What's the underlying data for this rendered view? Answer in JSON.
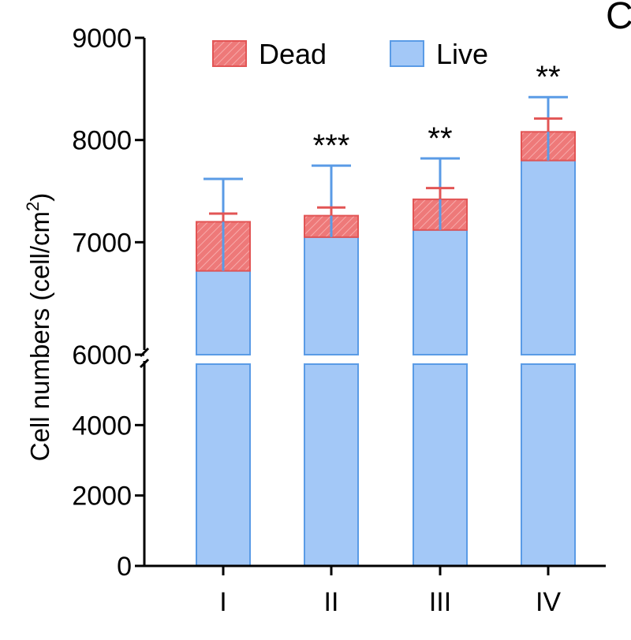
{
  "panel_letter": "C",
  "chart_data": {
    "type": "bar",
    "stacked": true,
    "categories": [
      "I",
      "II",
      "III",
      "IV"
    ],
    "series": [
      {
        "name": "Live",
        "values": [
          6720,
          7050,
          7120,
          7800
        ],
        "errors": [
          900,
          700,
          700,
          620
        ],
        "color": "#a3c8f7",
        "edge": "#5a9be6"
      },
      {
        "name": "Dead",
        "values": [
          480,
          210,
          300,
          280
        ],
        "errors": [
          80,
          80,
          110,
          130
        ],
        "color": "#ee7979",
        "edge": "#e25555"
      }
    ],
    "significance": [
      "",
      "***",
      "**",
      "**"
    ],
    "ylabel": "Cell numbers (cell/cm",
    "ylabel_sup": "2",
    "ylabel_close": ")",
    "y_axis": {
      "segments": [
        {
          "range": [
            0,
            6000
          ],
          "ticks": [
            "0",
            "2000",
            "4000"
          ]
        },
        {
          "range": [
            6000,
            9000
          ],
          "ticks": [
            "6000",
            "7000",
            "8000",
            "9000"
          ]
        }
      ],
      "break_at": 6000
    },
    "legend": {
      "position": "top",
      "entries": [
        "Dead",
        "Live"
      ]
    },
    "grid": false
  }
}
